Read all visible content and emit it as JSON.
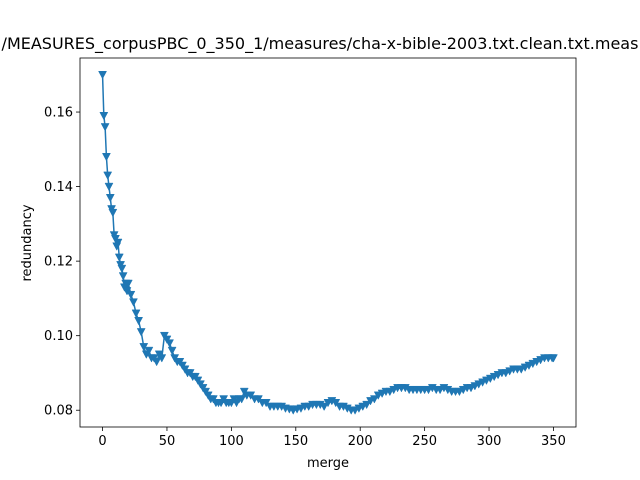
{
  "chart_data": {
    "type": "line",
    "title": "/MEASURES_corpusPBC_0_350_1/measures/cha-x-bible-2003.txt.clean.txt.meas",
    "xlabel": "merge",
    "ylabel": "redundancy",
    "xlim": [
      -17.5,
      367.5
    ],
    "ylim": [
      0.0755,
      0.1745
    ],
    "xticks": [
      0,
      50,
      100,
      150,
      200,
      250,
      300,
      350
    ],
    "yticks": [
      0.08,
      0.1,
      0.12,
      0.14,
      0.16
    ],
    "ytick_labels": [
      "0.08",
      "0.10",
      "0.12",
      "0.14",
      "0.16"
    ],
    "grid": false,
    "marker": "triangle-down",
    "color": "#1f77b4",
    "series": [
      {
        "name": "",
        "x": [
          0,
          1,
          2,
          3,
          4,
          5,
          6,
          7,
          8,
          9,
          10,
          11,
          12,
          13,
          14,
          15,
          16,
          17,
          18,
          19,
          20,
          22,
          24,
          26,
          28,
          30,
          32,
          34,
          36,
          38,
          40,
          42,
          44,
          46,
          48,
          50,
          52,
          54,
          56,
          58,
          60,
          62,
          64,
          66,
          68,
          70,
          72,
          74,
          76,
          78,
          80,
          82,
          84,
          86,
          88,
          90,
          92,
          94,
          96,
          98,
          100,
          102,
          104,
          106,
          108,
          110,
          112,
          115,
          118,
          121,
          124,
          127,
          130,
          133,
          136,
          139,
          142,
          145,
          148,
          151,
          154,
          157,
          160,
          163,
          166,
          169,
          172,
          175,
          178,
          181,
          184,
          187,
          190,
          193,
          196,
          199,
          202,
          205,
          208,
          211,
          214,
          217,
          220,
          223,
          226,
          229,
          232,
          235,
          238,
          241,
          244,
          247,
          250,
          253,
          256,
          259,
          262,
          265,
          268,
          271,
          274,
          277,
          280,
          283,
          286,
          289,
          292,
          295,
          298,
          301,
          304,
          307,
          310,
          313,
          316,
          319,
          322,
          325,
          328,
          331,
          334,
          337,
          340,
          343,
          346,
          349,
          350
        ],
        "values": [
          0.17,
          0.159,
          0.156,
          0.148,
          0.143,
          0.14,
          0.137,
          0.134,
          0.133,
          0.127,
          0.126,
          0.124,
          0.125,
          0.121,
          0.119,
          0.118,
          0.116,
          0.113,
          0.114,
          0.112,
          0.114,
          0.111,
          0.109,
          0.106,
          0.104,
          0.101,
          0.097,
          0.095,
          0.096,
          0.094,
          0.094,
          0.093,
          0.095,
          0.094,
          0.1,
          0.099,
          0.098,
          0.096,
          0.094,
          0.093,
          0.093,
          0.092,
          0.091,
          0.09,
          0.09,
          0.089,
          0.089,
          0.088,
          0.087,
          0.086,
          0.085,
          0.084,
          0.083,
          0.083,
          0.082,
          0.082,
          0.082,
          0.083,
          0.082,
          0.082,
          0.082,
          0.083,
          0.082,
          0.083,
          0.083,
          0.085,
          0.084,
          0.084,
          0.083,
          0.083,
          0.082,
          0.082,
          0.081,
          0.081,
          0.081,
          0.081,
          0.0805,
          0.0803,
          0.08,
          0.0803,
          0.0805,
          0.081,
          0.081,
          0.0815,
          0.0815,
          0.0815,
          0.081,
          0.082,
          0.0825,
          0.082,
          0.081,
          0.081,
          0.0805,
          0.08,
          0.08,
          0.0805,
          0.081,
          0.0815,
          0.0825,
          0.083,
          0.084,
          0.0845,
          0.085,
          0.085,
          0.0855,
          0.086,
          0.086,
          0.086,
          0.0855,
          0.0855,
          0.0855,
          0.0855,
          0.0855,
          0.0855,
          0.086,
          0.0855,
          0.0855,
          0.086,
          0.0855,
          0.085,
          0.085,
          0.085,
          0.0855,
          0.086,
          0.086,
          0.0865,
          0.087,
          0.0875,
          0.088,
          0.0885,
          0.089,
          0.0895,
          0.09,
          0.09,
          0.0905,
          0.091,
          0.091,
          0.091,
          0.0915,
          0.092,
          0.0925,
          0.093,
          0.0935,
          0.094,
          0.094,
          0.094,
          0.094
        ]
      }
    ]
  }
}
